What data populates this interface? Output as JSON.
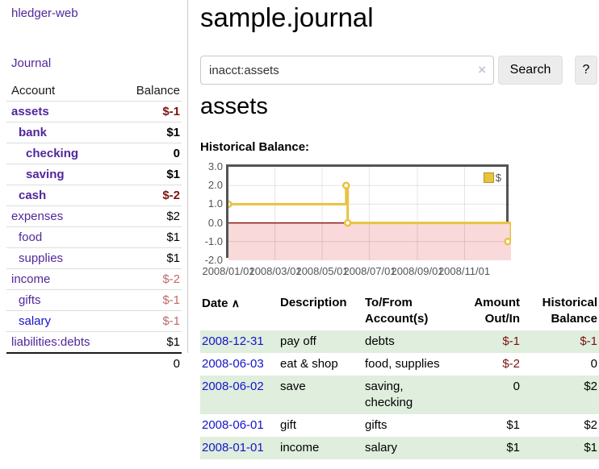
{
  "colors": {
    "link_purple": "#51279b",
    "link_blue": "#1414cc",
    "negative_strong": "#7c1212",
    "negative_muted": "#c06a6a",
    "row_stripe_green": "#dfeedd",
    "chart_line_yellow": "#e9c240",
    "chart_negative_region_pink": "#f9d9d9",
    "chart_zero_line_red": "#8f1717",
    "chart_border_gray": "#545454"
  },
  "sidebar": {
    "app_title": "hledger-web",
    "journal_label": "Journal",
    "accounts_table": {
      "account_header": "Account",
      "balance_header": "Balance",
      "rows": [
        {
          "name": "assets",
          "balance": "$-1",
          "level": 1,
          "bold": true,
          "balance_style": "neg-strong"
        },
        {
          "name": "bank",
          "balance": "$1",
          "level": 2,
          "bold": true,
          "balance_style": ""
        },
        {
          "name": "checking",
          "balance": "0",
          "level": 3,
          "bold": true,
          "balance_style": ""
        },
        {
          "name": "saving",
          "balance": "$1",
          "level": 3,
          "bold": true,
          "balance_style": ""
        },
        {
          "name": "cash",
          "balance": "$-2",
          "level": 2,
          "bold": true,
          "balance_style": "neg-strong"
        },
        {
          "name": "expenses",
          "balance": "$2",
          "level": 1,
          "bold": false,
          "balance_style": ""
        },
        {
          "name": "food",
          "balance": "$1",
          "level": 2,
          "bold": false,
          "balance_style": ""
        },
        {
          "name": "supplies",
          "balance": "$1",
          "level": 2,
          "bold": false,
          "balance_style": ""
        },
        {
          "name": "income",
          "balance": "$-2",
          "level": 1,
          "bold": false,
          "balance_style": "neg-muted"
        },
        {
          "name": "gifts",
          "balance": "$-1",
          "level": 2,
          "bold": false,
          "balance_style": "neg-muted"
        },
        {
          "name": "salary",
          "balance": "$-1",
          "level": 2,
          "bold": false,
          "balance_style": "neg-muted",
          "link_blue": true
        },
        {
          "name": "liabilities:debts",
          "balance": "$1",
          "level": 1,
          "bold": false,
          "balance_style": ""
        }
      ],
      "total": "0"
    }
  },
  "main": {
    "title": "sample.journal",
    "search": {
      "value": "inacct:assets",
      "clear_icon": "×",
      "search_button_label": "Search",
      "help_button_label": "?"
    },
    "account_heading": "assets",
    "chart_heading": "Historical Balance:"
  },
  "chart_data": {
    "type": "line",
    "step": true,
    "title": "Historical Balance:",
    "legend": {
      "label": "$",
      "position": "top-right"
    },
    "x_range": [
      "2008-01-01",
      "2008-12-31"
    ],
    "ylim": [
      -2.0,
      3.0
    ],
    "y_ticks": [
      "3.0",
      "2.0",
      "1.0",
      "0.0",
      "-1.0",
      "-2.0"
    ],
    "x_ticks": [
      {
        "label": "2008/01/01",
        "date": "2008-01-01"
      },
      {
        "label": "2008/03/01",
        "date": "2008-03-01"
      },
      {
        "label": "2008/05/01",
        "date": "2008-05-01"
      },
      {
        "label": "2008/07/01",
        "date": "2008-07-01"
      },
      {
        "label": "2008/09/01",
        "date": "2008-09-01"
      },
      {
        "label": "2008/11/01",
        "date": "2008-11-01"
      }
    ],
    "series": [
      {
        "name": "$",
        "points": [
          {
            "date": "2008-01-01",
            "value": 1
          },
          {
            "date": "2008-06-01",
            "value": 2
          },
          {
            "date": "2008-06-03",
            "value": 0
          },
          {
            "date": "2008-12-31",
            "value": -1
          }
        ]
      }
    ],
    "grid": true,
    "negative_region_shaded": true
  },
  "register_table": {
    "sort_icon": "∧",
    "headers": {
      "date": "Date",
      "description": "Description",
      "accounts": "To/From Account(s)",
      "amount": "Amount Out/In",
      "balance": "Historical Balance"
    },
    "rows": [
      {
        "date": "2008-12-31",
        "description": "pay off",
        "accounts": "debts",
        "amount": "$-1",
        "balance": "$-1",
        "amount_style": "neg-strong",
        "balance_style": "neg-strong"
      },
      {
        "date": "2008-06-03",
        "description": "eat & shop",
        "accounts": "food, supplies",
        "amount": "$-2",
        "balance": "0",
        "amount_style": "neg-strong",
        "balance_style": ""
      },
      {
        "date": "2008-06-02",
        "description": "save",
        "accounts": "saving, checking",
        "amount": "0",
        "balance": "$2",
        "amount_style": "",
        "balance_style": ""
      },
      {
        "date": "2008-06-01",
        "description": "gift",
        "accounts": "gifts",
        "amount": "$1",
        "balance": "$2",
        "amount_style": "",
        "balance_style": ""
      },
      {
        "date": "2008-01-01",
        "description": "income",
        "accounts": "salary",
        "amount": "$1",
        "balance": "$1",
        "amount_style": "",
        "balance_style": ""
      }
    ]
  }
}
